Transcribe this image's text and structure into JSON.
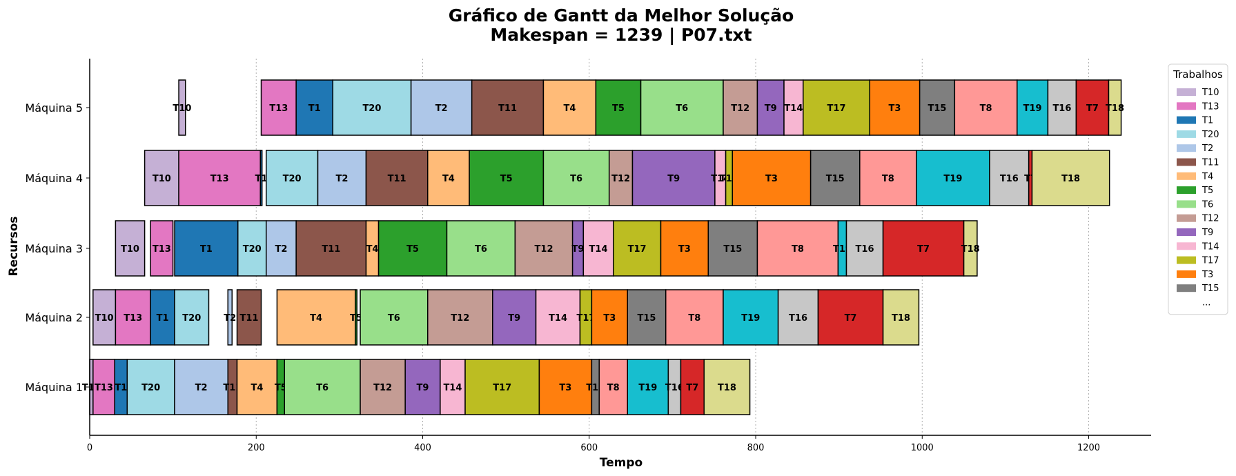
{
  "chart_data": {
    "type": "gantt",
    "title": "Gráfico de Gantt da Melhor Solução",
    "subtitle": "Makespan = 1239 | P07.txt",
    "xlabel": "Tempo",
    "ylabel": "Recursos",
    "xlim": [
      0,
      1275
    ],
    "xticks": [
      0,
      200,
      400,
      600,
      800,
      1000,
      1200
    ],
    "grid": "x-dotted",
    "legend": {
      "title": "Trabalhos",
      "placement": "right",
      "items": [
        "T10",
        "T13",
        "T1",
        "T20",
        "T2",
        "T11",
        "T4",
        "T5",
        "T6",
        "T12",
        "T9",
        "T14",
        "T17",
        "T3",
        "T15"
      ],
      "more": "..."
    },
    "colors": {
      "T10": "#c5b0d5",
      "T13": "#e377c2",
      "T1": "#1f77b4",
      "T20": "#9edae5",
      "T2": "#aec7e8",
      "T11": "#8c564b",
      "T4": "#ffbb78",
      "T5": "#2ca02c",
      "T6": "#98df8a",
      "T12": "#c49c94",
      "T9": "#9467bd",
      "T14": "#f7b6d2",
      "T17": "#bcbd22",
      "T3": "#ff7f0e",
      "T15": "#7f7f7f",
      "T8": "#ff9896",
      "T19": "#17becf",
      "T16": "#c7c7c7",
      "T7": "#d62728",
      "T18": "#dbdb8d"
    },
    "resources": [
      "Máquina 1",
      "Máquina 2",
      "Máquina 3",
      "Máquina 4",
      "Máquina 5"
    ],
    "tasks": [
      {
        "resource": "Máquina 1",
        "job": "T10",
        "start": 0,
        "end": 4
      },
      {
        "resource": "Máquina 1",
        "job": "T13",
        "start": 4,
        "end": 30
      },
      {
        "resource": "Máquina 1",
        "job": "T1",
        "start": 30,
        "end": 45
      },
      {
        "resource": "Máquina 1",
        "job": "T20",
        "start": 45,
        "end": 102
      },
      {
        "resource": "Máquina 1",
        "job": "T2",
        "start": 102,
        "end": 166
      },
      {
        "resource": "Máquina 1",
        "job": "T11",
        "start": 166,
        "end": 177
      },
      {
        "resource": "Máquina 1",
        "job": "T4",
        "start": 177,
        "end": 225
      },
      {
        "resource": "Máquina 1",
        "job": "T5",
        "start": 225,
        "end": 234
      },
      {
        "resource": "Máquina 1",
        "job": "T6",
        "start": 234,
        "end": 325
      },
      {
        "resource": "Máquina 1",
        "job": "T12",
        "start": 325,
        "end": 379
      },
      {
        "resource": "Máquina 1",
        "job": "T9",
        "start": 379,
        "end": 421
      },
      {
        "resource": "Máquina 1",
        "job": "T14",
        "start": 421,
        "end": 451
      },
      {
        "resource": "Máquina 1",
        "job": "T17",
        "start": 451,
        "end": 540
      },
      {
        "resource": "Máquina 1",
        "job": "T3",
        "start": 540,
        "end": 603
      },
      {
        "resource": "Máquina 1",
        "job": "T15",
        "start": 603,
        "end": 612
      },
      {
        "resource": "Máquina 1",
        "job": "T8",
        "start": 612,
        "end": 646
      },
      {
        "resource": "Máquina 1",
        "job": "T19",
        "start": 646,
        "end": 695
      },
      {
        "resource": "Máquina 1",
        "job": "T16",
        "start": 695,
        "end": 710
      },
      {
        "resource": "Máquina 1",
        "job": "T7",
        "start": 710,
        "end": 738
      },
      {
        "resource": "Máquina 1",
        "job": "T18",
        "start": 738,
        "end": 793
      },
      {
        "resource": "Máquina 2",
        "job": "T10",
        "start": 4,
        "end": 31
      },
      {
        "resource": "Máquina 2",
        "job": "T13",
        "start": 31,
        "end": 73
      },
      {
        "resource": "Máquina 2",
        "job": "T1",
        "start": 73,
        "end": 102
      },
      {
        "resource": "Máquina 2",
        "job": "T20",
        "start": 102,
        "end": 143
      },
      {
        "resource": "Máquina 2",
        "job": "T2",
        "start": 166,
        "end": 171
      },
      {
        "resource": "Máquina 2",
        "job": "T11",
        "start": 177,
        "end": 206
      },
      {
        "resource": "Máquina 2",
        "job": "T4",
        "start": 225,
        "end": 319
      },
      {
        "resource": "Máquina 2",
        "job": "T5",
        "start": 319,
        "end": 321
      },
      {
        "resource": "Máquina 2",
        "job": "T6",
        "start": 325,
        "end": 406
      },
      {
        "resource": "Máquina 2",
        "job": "T12",
        "start": 406,
        "end": 484
      },
      {
        "resource": "Máquina 2",
        "job": "T9",
        "start": 484,
        "end": 536
      },
      {
        "resource": "Máquina 2",
        "job": "T14",
        "start": 536,
        "end": 589
      },
      {
        "resource": "Máquina 2",
        "job": "T17",
        "start": 589,
        "end": 603
      },
      {
        "resource": "Máquina 2",
        "job": "T3",
        "start": 603,
        "end": 646
      },
      {
        "resource": "Máquina 2",
        "job": "T15",
        "start": 646,
        "end": 692
      },
      {
        "resource": "Máquina 2",
        "job": "T8",
        "start": 692,
        "end": 761
      },
      {
        "resource": "Máquina 2",
        "job": "T19",
        "start": 761,
        "end": 827
      },
      {
        "resource": "Máquina 2",
        "job": "T16",
        "start": 827,
        "end": 875
      },
      {
        "resource": "Máquina 2",
        "job": "T7",
        "start": 875,
        "end": 953
      },
      {
        "resource": "Máquina 2",
        "job": "T18",
        "start": 953,
        "end": 996
      },
      {
        "resource": "Máquina 3",
        "job": "T10",
        "start": 31,
        "end": 66
      },
      {
        "resource": "Máquina 3",
        "job": "T13",
        "start": 73,
        "end": 100
      },
      {
        "resource": "Máquina 3",
        "job": "T1",
        "start": 102,
        "end": 178
      },
      {
        "resource": "Máquina 3",
        "job": "T20",
        "start": 178,
        "end": 212
      },
      {
        "resource": "Máquina 3",
        "job": "T2",
        "start": 212,
        "end": 248
      },
      {
        "resource": "Máquina 3",
        "job": "T11",
        "start": 248,
        "end": 332
      },
      {
        "resource": "Máquina 3",
        "job": "T4",
        "start": 332,
        "end": 347
      },
      {
        "resource": "Máquina 3",
        "job": "T5",
        "start": 347,
        "end": 429
      },
      {
        "resource": "Máquina 3",
        "job": "T6",
        "start": 429,
        "end": 511
      },
      {
        "resource": "Máquina 3",
        "job": "T12",
        "start": 511,
        "end": 580
      },
      {
        "resource": "Máquina 3",
        "job": "T9",
        "start": 580,
        "end": 593
      },
      {
        "resource": "Máquina 3",
        "job": "T14",
        "start": 593,
        "end": 629
      },
      {
        "resource": "Máquina 3",
        "job": "T17",
        "start": 629,
        "end": 686
      },
      {
        "resource": "Máquina 3",
        "job": "T3",
        "start": 686,
        "end": 743
      },
      {
        "resource": "Máquina 3",
        "job": "T15",
        "start": 743,
        "end": 802
      },
      {
        "resource": "Máquina 3",
        "job": "T8",
        "start": 802,
        "end": 899
      },
      {
        "resource": "Máquina 3",
        "job": "T19",
        "start": 899,
        "end": 909
      },
      {
        "resource": "Máquina 3",
        "job": "T16",
        "start": 909,
        "end": 953
      },
      {
        "resource": "Máquina 3",
        "job": "T7",
        "start": 953,
        "end": 1050
      },
      {
        "resource": "Máquina 3",
        "job": "T18",
        "start": 1050,
        "end": 1066
      },
      {
        "resource": "Máquina 4",
        "job": "T10",
        "start": 66,
        "end": 107
      },
      {
        "resource": "Máquina 4",
        "job": "T13",
        "start": 107,
        "end": 205
      },
      {
        "resource": "Máquina 4",
        "job": "T1",
        "start": 205,
        "end": 207
      },
      {
        "resource": "Máquina 4",
        "job": "T20",
        "start": 212,
        "end": 274
      },
      {
        "resource": "Máquina 4",
        "job": "T2",
        "start": 274,
        "end": 332
      },
      {
        "resource": "Máquina 4",
        "job": "T11",
        "start": 332,
        "end": 406
      },
      {
        "resource": "Máquina 4",
        "job": "T4",
        "start": 406,
        "end": 456
      },
      {
        "resource": "Máquina 4",
        "job": "T5",
        "start": 456,
        "end": 545
      },
      {
        "resource": "Máquina 4",
        "job": "T6",
        "start": 545,
        "end": 624
      },
      {
        "resource": "Máquina 4",
        "job": "T12",
        "start": 624,
        "end": 652
      },
      {
        "resource": "Máquina 4",
        "job": "T9",
        "start": 652,
        "end": 751
      },
      {
        "resource": "Máquina 4",
        "job": "T14",
        "start": 751,
        "end": 764
      },
      {
        "resource": "Máquina 4",
        "job": "T17",
        "start": 764,
        "end": 772
      },
      {
        "resource": "Máquina 4",
        "job": "T3",
        "start": 772,
        "end": 866
      },
      {
        "resource": "Máquina 4",
        "job": "T15",
        "start": 866,
        "end": 925
      },
      {
        "resource": "Máquina 4",
        "job": "T8",
        "start": 925,
        "end": 993
      },
      {
        "resource": "Máquina 4",
        "job": "T19",
        "start": 993,
        "end": 1081
      },
      {
        "resource": "Máquina 4",
        "job": "T16",
        "start": 1081,
        "end": 1128
      },
      {
        "resource": "Máquina 4",
        "job": "T7",
        "start": 1128,
        "end": 1132
      },
      {
        "resource": "Máquina 4",
        "job": "T18",
        "start": 1132,
        "end": 1225
      },
      {
        "resource": "Máquina 5",
        "job": "T10",
        "start": 107,
        "end": 115
      },
      {
        "resource": "Máquina 5",
        "job": "T13",
        "start": 206,
        "end": 248
      },
      {
        "resource": "Máquina 5",
        "job": "T1",
        "start": 248,
        "end": 292
      },
      {
        "resource": "Máquina 5",
        "job": "T20",
        "start": 292,
        "end": 386
      },
      {
        "resource": "Máquina 5",
        "job": "T2",
        "start": 386,
        "end": 459
      },
      {
        "resource": "Máquina 5",
        "job": "T11",
        "start": 459,
        "end": 545
      },
      {
        "resource": "Máquina 5",
        "job": "T4",
        "start": 545,
        "end": 608
      },
      {
        "resource": "Máquina 5",
        "job": "T5",
        "start": 608,
        "end": 662
      },
      {
        "resource": "Máquina 5",
        "job": "T6",
        "start": 662,
        "end": 761
      },
      {
        "resource": "Máquina 5",
        "job": "T12",
        "start": 761,
        "end": 802
      },
      {
        "resource": "Máquina 5",
        "job": "T9",
        "start": 802,
        "end": 834
      },
      {
        "resource": "Máquina 5",
        "job": "T14",
        "start": 834,
        "end": 857
      },
      {
        "resource": "Máquina 5",
        "job": "T17",
        "start": 857,
        "end": 937
      },
      {
        "resource": "Máquina 5",
        "job": "T3",
        "start": 937,
        "end": 997
      },
      {
        "resource": "Máquina 5",
        "job": "T15",
        "start": 997,
        "end": 1039
      },
      {
        "resource": "Máquina 5",
        "job": "T8",
        "start": 1039,
        "end": 1114
      },
      {
        "resource": "Máquina 5",
        "job": "T19",
        "start": 1114,
        "end": 1151
      },
      {
        "resource": "Máquina 5",
        "job": "T16",
        "start": 1151,
        "end": 1185
      },
      {
        "resource": "Máquina 5",
        "job": "T7",
        "start": 1185,
        "end": 1224
      },
      {
        "resource": "Máquina 5",
        "job": "T18",
        "start": 1224,
        "end": 1239
      }
    ]
  }
}
